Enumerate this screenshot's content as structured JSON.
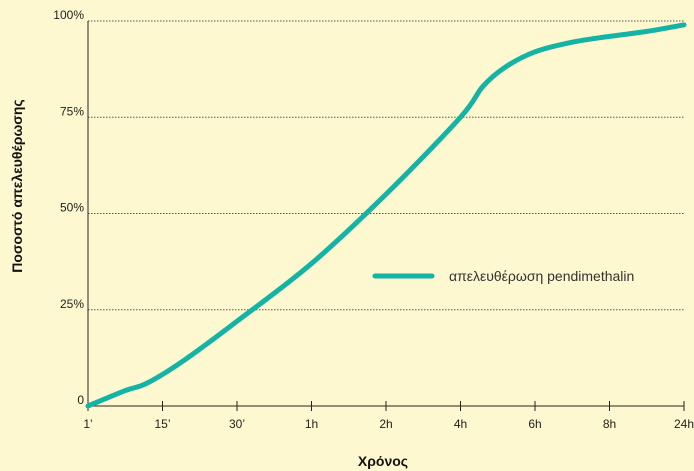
{
  "chart_data": {
    "type": "line",
    "title": "",
    "xlabel": "Χρόνος",
    "ylabel": "Ποσοστό απελευθέρωσης",
    "x": [
      "1’",
      "15’",
      "30’",
      "1h",
      "2h",
      "4h",
      "6h",
      "8h",
      "24h"
    ],
    "y_ticks": [
      "0",
      "25%",
      "50%",
      "75%",
      "100%"
    ],
    "ylim": [
      0,
      100
    ],
    "grid": "horizontal-dotted",
    "legend_placement": "right-middle",
    "series": [
      {
        "name": "απελευθέρωση pendimethalin",
        "color": "#14b3a6",
        "points": [
          [
            0,
            0
          ],
          [
            0.5,
            4
          ],
          [
            0.8,
            6
          ],
          [
            1.3,
            12
          ],
          [
            2,
            22
          ],
          [
            3,
            37
          ],
          [
            4,
            55
          ],
          [
            5,
            75
          ],
          [
            5.3,
            83
          ],
          [
            5.6,
            88
          ],
          [
            6,
            92
          ],
          [
            6.5,
            94.5
          ],
          [
            7,
            96
          ],
          [
            7.5,
            97.3
          ],
          [
            8,
            99
          ]
        ]
      }
    ]
  },
  "colors": {
    "background": "#fdf8cf",
    "line": "#14b3a6",
    "grid": "#555555",
    "axis": "#222222"
  }
}
